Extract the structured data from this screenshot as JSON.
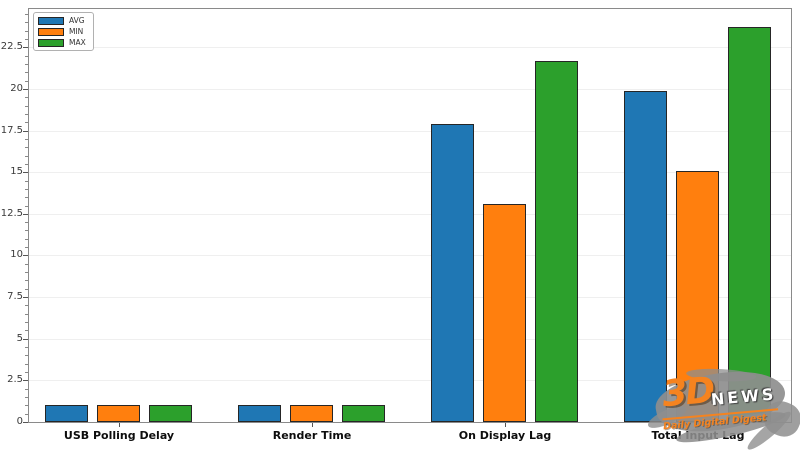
{
  "chart_data": {
    "type": "bar",
    "title": "",
    "categories": [
      "USB Polling Delay",
      "Render Time",
      "On Display Lag",
      "Total Input Lag"
    ],
    "series": [
      {
        "name": "AVG",
        "color": "#1f77b4",
        "values": [
          1.0,
          1.0,
          17.9,
          19.9
        ]
      },
      {
        "name": "MIN",
        "color": "#ff7f0e",
        "values": [
          1.0,
          1.0,
          13.1,
          15.1
        ]
      },
      {
        "name": "MAX",
        "color": "#2ca02c",
        "values": [
          1.0,
          1.0,
          21.7,
          23.7
        ]
      }
    ],
    "xlabel": "",
    "ylabel": "",
    "ylim": [
      0,
      24.8
    ],
    "yticks": [
      "0",
      "2.5",
      "5",
      "7.5",
      "10",
      "12.5",
      "15",
      "17.5",
      "20",
      "22.5"
    ],
    "minor_tick_step": 0.5,
    "grid": "horizontal-only",
    "grid_color": "#efefef",
    "spine_color": "#8a8a8a",
    "bar_edge_color": "#262626",
    "legend_position": "upper-left"
  },
  "watermark": {
    "brand_3d": "3D",
    "brand_news": "NEWS",
    "tagline": "Daily Digital Digest",
    "orange": "#f5831f",
    "splash_gray": "#8e8e8e"
  }
}
